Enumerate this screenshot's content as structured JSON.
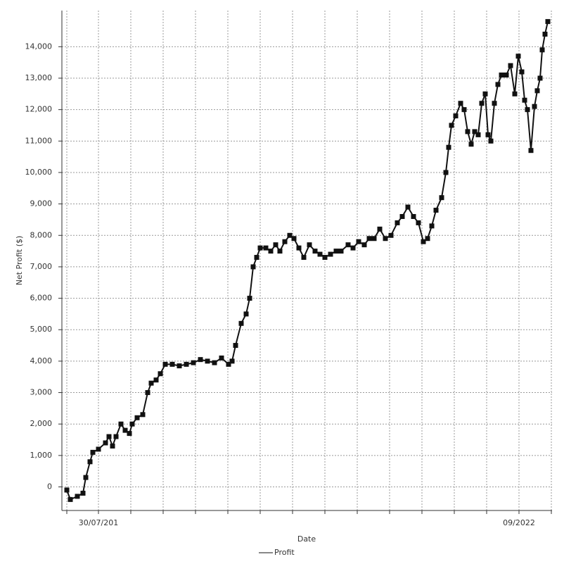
{
  "chart_data": {
    "type": "line",
    "x_label": "Date",
    "y_label": "Net Profit ($)",
    "x": [
      7,
      12,
      22,
      30,
      34,
      40,
      44,
      52,
      62,
      67,
      72,
      77,
      84,
      90,
      96,
      100,
      107,
      115,
      122,
      127,
      134,
      140,
      147,
      157,
      167,
      177,
      187,
      197,
      207,
      217,
      227,
      237,
      242,
      247,
      255,
      262,
      267,
      272,
      277,
      282,
      290,
      297,
      304,
      310,
      317,
      324,
      330,
      337,
      344,
      352,
      360,
      367,
      374,
      382,
      390,
      397,
      407,
      414,
      422,
      430,
      437,
      444,
      452,
      460,
      468,
      477,
      484,
      492,
      500,
      507,
      514,
      520,
      526,
      532,
      540,
      546,
      550,
      554,
      560,
      567,
      572,
      577,
      582,
      587,
      592,
      597,
      602,
      606,
      610,
      615,
      620,
      625,
      632,
      638,
      644,
      649,
      654,
      658,
      662,
      667,
      672,
      676,
      680,
      683,
      687,
      691
    ],
    "series": [
      {
        "name": "Profit",
        "color": "#111111",
        "values": [
          -100,
          -400,
          -300,
          -200,
          300,
          800,
          1100,
          1200,
          1400,
          1600,
          1300,
          1600,
          2000,
          1800,
          1700,
          2000,
          2200,
          2300,
          3000,
          3300,
          3400,
          3600,
          3900,
          3900,
          3850,
          3900,
          3950,
          4050,
          4000,
          3950,
          4100,
          3900,
          4000,
          4500,
          5200,
          5500,
          6000,
          7000,
          7300,
          7600,
          7600,
          7500,
          7700,
          7500,
          7800,
          8000,
          7900,
          7600,
          7300,
          7700,
          7500,
          7400,
          7300,
          7400,
          7500,
          7500,
          7700,
          7600,
          7800,
          7700,
          7900,
          7900,
          8200,
          7900,
          8000,
          8400,
          8600,
          8900,
          8600,
          8400,
          7800,
          7900,
          8300,
          8800,
          9200,
          10000,
          10800,
          11500,
          11800,
          12200,
          12000,
          11300,
          10900,
          11300,
          11200,
          12200,
          12500,
          11200,
          11000,
          12200,
          12800,
          13100,
          13100,
          13400,
          12500,
          13700,
          13200,
          12300,
          12000,
          10700,
          12100,
          12600,
          13000,
          13900,
          14400,
          14800
        ]
      }
    ],
    "xlim": [
      0,
      697
    ],
    "xgrid": [
      7,
      52,
      98,
      144,
      190,
      236,
      282,
      328,
      374,
      420,
      466,
      512,
      558,
      604,
      650,
      696
    ],
    "xticks": [
      {
        "value": 52,
        "label": "30/07/201"
      },
      {
        "value": 650,
        "label": "09/2022"
      }
    ],
    "ylim": [
      -750,
      15150
    ],
    "yticks": [
      0,
      {
        "value": 1000,
        "label": "1,000"
      },
      {
        "value": 2000,
        "label": "2,000"
      },
      {
        "value": 3000,
        "label": "3,000"
      },
      {
        "value": 4000,
        "label": "4,000"
      },
      {
        "value": 5000,
        "label": "5,000"
      },
      {
        "value": 6000,
        "label": "6,000"
      },
      {
        "value": 7000,
        "label": "7,000"
      },
      {
        "value": 8000,
        "label": "8,000"
      },
      {
        "value": 9000,
        "label": "9,000"
      },
      {
        "value": 10000,
        "label": "10,000"
      },
      {
        "value": 11000,
        "label": "11,000"
      },
      {
        "value": 12000,
        "label": "12,000"
      },
      {
        "value": 13000,
        "label": "13,000"
      },
      {
        "value": 14000,
        "label": "14,000"
      }
    ],
    "grid": true
  }
}
